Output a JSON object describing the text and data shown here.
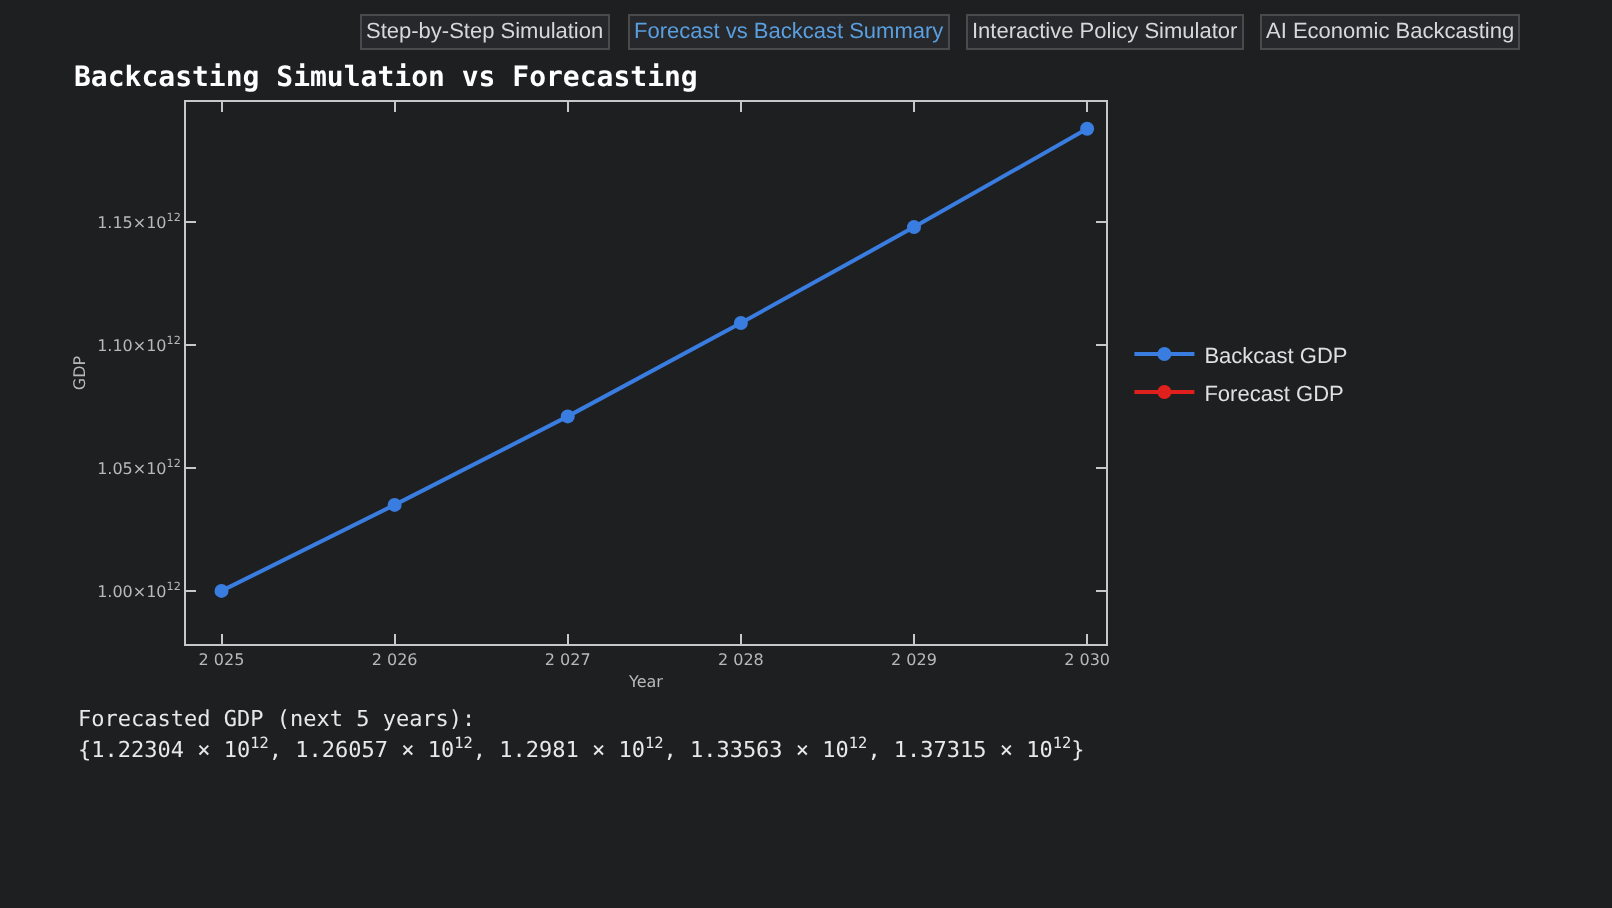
{
  "chart_data": {
    "type": "line",
    "title": "Backcasting Simulation vs Forecasting",
    "xlabel": "Year",
    "ylabel": "GDP",
    "x": [
      2025,
      2026,
      2027,
      2028,
      2029,
      2030
    ],
    "series": [
      {
        "name": "Backcast GDP",
        "color": "#3a7de0",
        "values": [
          1000000000000,
          1035000000000,
          1071000000000,
          1109000000000,
          1148000000000,
          1188000000000
        ]
      },
      {
        "name": "Forecast GDP",
        "color": "#e0201c",
        "values": [
          null,
          null,
          null,
          null,
          null,
          null
        ]
      }
    ],
    "xlim": [
      2024.795,
      2030.109
    ],
    "ylim": [
      978400000000,
      1198900000000
    ],
    "xticks": [
      {
        "value": 2025,
        "label": "2 025"
      },
      {
        "value": 2026,
        "label": "2 026"
      },
      {
        "value": 2027,
        "label": "2 027"
      },
      {
        "value": 2028,
        "label": "2 028"
      },
      {
        "value": 2029,
        "label": "2 029"
      },
      {
        "value": 2030,
        "label": "2 030"
      }
    ],
    "yticks": [
      {
        "value": 1000000000000,
        "label": "1.00×10$^{12}$"
      },
      {
        "value": 1050000000000,
        "label": "1.05×10$^{12}$"
      },
      {
        "value": 1100000000000,
        "label": "1.10×10$^{12}$"
      },
      {
        "value": 1150000000000,
        "label": "1.15×10$^{12}$"
      }
    ],
    "marker": "circle",
    "line_style": "solid",
    "grid": false,
    "legend": "right",
    "annotations": [
      "Step-by-Step Simulation",
      "Forecast vs Backcast Summary",
      "Interactive Policy Simulator",
      "AI Economic Backcasting",
      "Forecasted GDP (next 5 years):",
      "{1.22304 × 10$^{12}$, 1.26057 × 10$^{12}$, 1.2981 × 10$^{12}$, 1.33563 × 10$^{12}$, 1.37315 × 10$^{12}$}"
    ]
  }
}
